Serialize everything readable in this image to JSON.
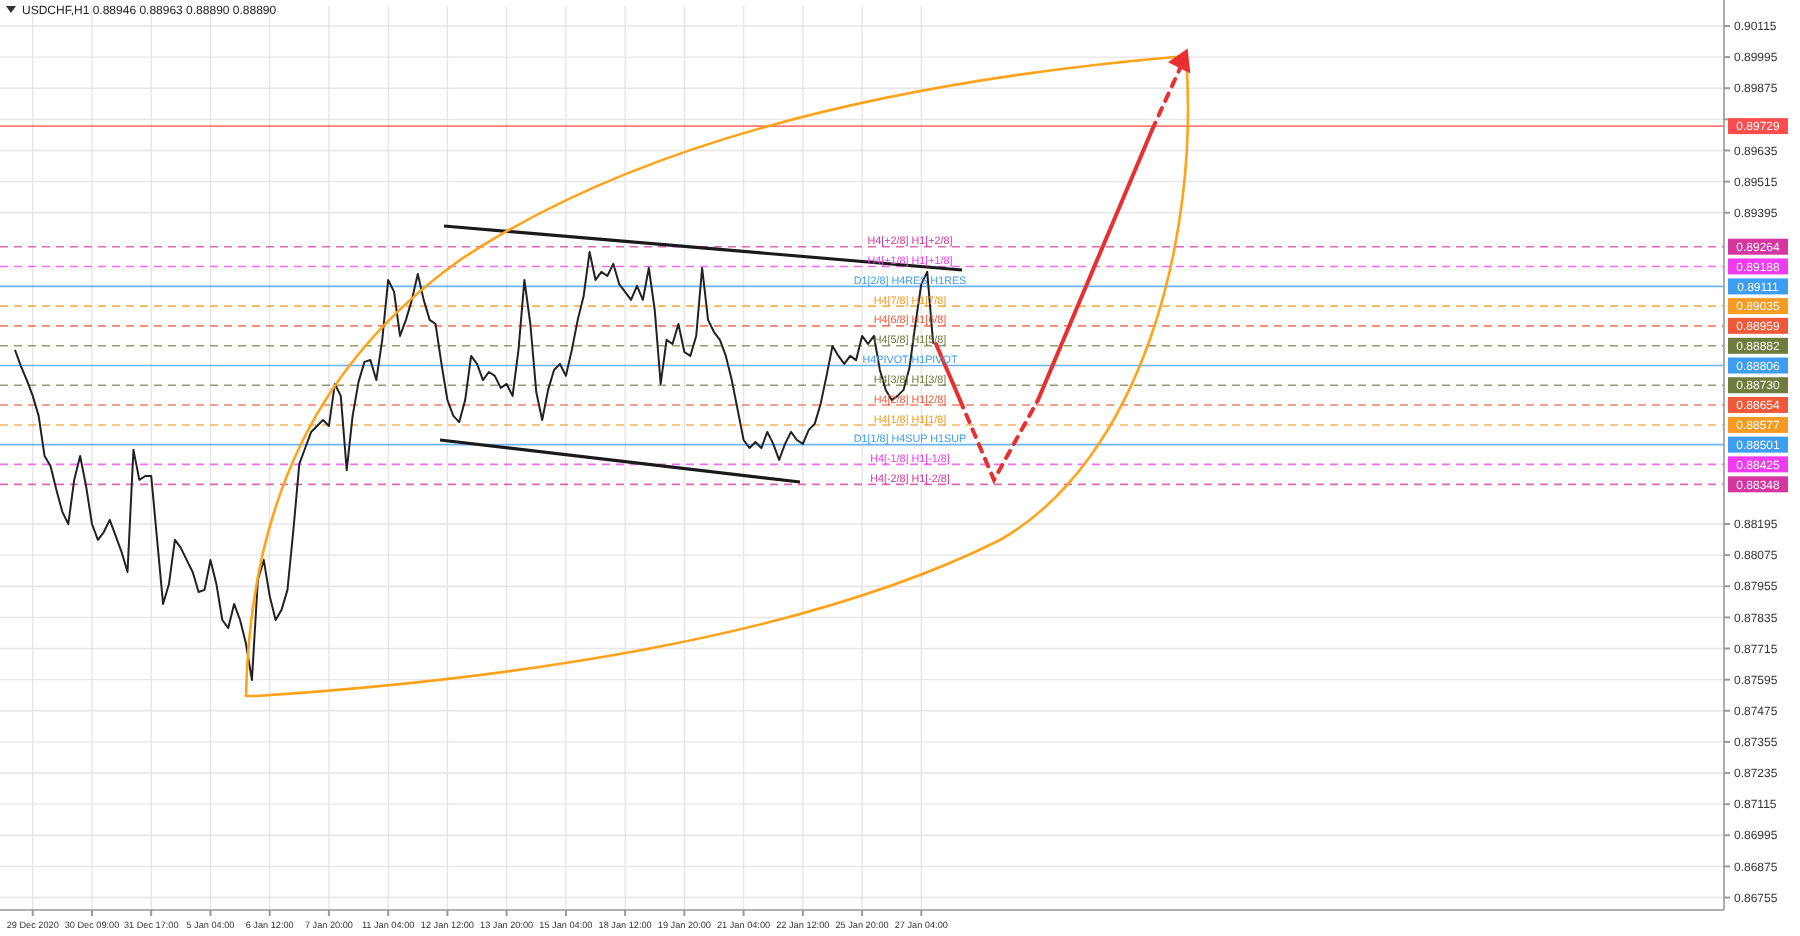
{
  "chart_data": {
    "type": "line",
    "title": "USDCHF,H1  0.88946 0.88963 0.88890 0.88890",
    "categories": [
      null,
      null,
      null,
      "29 Dec 2020",
      null,
      null,
      null,
      null,
      null,
      null,
      null,
      null,
      null,
      "30 Dec 09:00",
      null,
      null,
      null,
      null,
      null,
      null,
      null,
      null,
      null,
      "31 Dec 17:00",
      null,
      null,
      null,
      null,
      null,
      null,
      null,
      null,
      null,
      "5 Jan 04:00",
      null,
      null,
      null,
      null,
      null,
      null,
      null,
      null,
      null,
      "6 Jan 12:00",
      null,
      null,
      null,
      null,
      null,
      null,
      null,
      null,
      null,
      "7 Jan 20:00",
      null,
      null,
      null,
      null,
      null,
      null,
      null,
      null,
      null,
      "11 Jan 04:00",
      null,
      null,
      null,
      null,
      null,
      null,
      null,
      null,
      null,
      "12 Jan 12:00",
      null,
      null,
      null,
      null,
      null,
      null,
      null,
      null,
      null,
      "13 Jan 20:00",
      null,
      null,
      null,
      null,
      null,
      null,
      null,
      null,
      null,
      "15 Jan 04:00",
      null,
      null,
      null,
      null,
      null,
      null,
      null,
      null,
      null,
      "18 Jan 12:00",
      null,
      null,
      null,
      null,
      null,
      null,
      null,
      null,
      null,
      "19 Jan 20:00",
      null,
      null,
      null,
      null,
      null,
      null,
      null,
      null,
      null,
      "21 Jan 04:00",
      null,
      null,
      null,
      null,
      null,
      null,
      null,
      null,
      null,
      "22 Jan 12:00",
      null,
      null,
      null,
      null,
      null,
      null,
      null,
      null,
      null,
      "25 Jan 20:00",
      null,
      null,
      null,
      null,
      null,
      null,
      null,
      null,
      null,
      "27 Jan 04:00",
      null,
      null,
      null,
      null,
      null,
      null,
      null,
      null,
      null,
      null,
      null,
      null,
      null,
      null,
      null,
      null,
      null,
      null,
      null,
      null,
      null,
      null,
      null,
      null,
      null,
      null,
      null,
      null,
      null,
      null,
      null,
      null,
      null,
      null,
      null,
      null,
      null,
      null,
      null,
      null,
      null,
      null,
      null,
      null,
      null,
      null,
      null,
      null,
      null,
      null,
      null,
      null,
      null,
      null,
      null,
      null,
      null,
      null,
      null,
      null,
      null,
      null,
      null,
      null,
      null,
      null,
      null,
      null,
      null,
      null,
      null,
      null,
      null,
      null,
      null,
      null,
      null,
      null,
      null,
      null,
      null,
      null,
      null,
      null,
      null,
      null,
      null,
      null,
      null,
      null,
      null,
      null,
      null,
      null,
      null,
      null,
      null,
      null,
      null,
      null,
      null,
      null,
      null,
      null,
      null,
      null,
      null,
      null,
      null,
      null,
      null,
      null,
      null,
      null,
      null,
      null,
      null,
      null,
      null,
      null,
      null,
      null,
      null,
      null,
      null,
      null,
      null,
      null,
      null,
      null,
      null,
      null,
      null,
      null,
      null
    ],
    "series": [
      {
        "color": "#222222",
        "values": [
          0.88866,
          0.88804,
          0.8875,
          0.88689,
          0.88612,
          0.88457,
          0.88419,
          0.88326,
          0.88242,
          0.88195,
          0.88365,
          0.88457,
          0.88342,
          0.88195,
          0.88134,
          0.88164,
          0.88211,
          0.88149,
          0.88087,
          0.8801,
          0.88481,
          0.88365,
          0.8838,
          0.8838,
          0.88134,
          0.87887,
          0.87964,
          0.88134,
          0.88103,
          0.88056,
          0.8801,
          0.87933,
          0.87941,
          0.88056,
          0.87964,
          0.87825,
          0.87794,
          0.87887,
          0.87825,
          0.87733,
          0.87594,
          0.87979,
          0.88056,
          0.87918,
          0.87825,
          0.87864,
          0.87941,
          0.88172,
          0.88427,
          0.88488,
          0.8855,
          0.88573,
          0.88596,
          0.88573,
          0.88735,
          0.88689,
          0.88403,
          0.88612,
          0.88743,
          0.8882,
          0.88827,
          0.8875,
          0.88905,
          0.89136,
          0.8909,
          0.8892,
          0.88982,
          0.89059,
          0.89159,
          0.89059,
          0.88982,
          0.88966,
          0.88812,
          0.88673,
          0.88612,
          0.88588,
          0.88673,
          0.88843,
          0.88812,
          0.8875,
          0.88781,
          0.88766,
          0.8872,
          0.88735,
          0.88689,
          0.88866,
          0.89136,
          0.88966,
          0.88704,
          0.88596,
          0.88712,
          0.88789,
          0.88812,
          0.88766,
          0.88866,
          0.88982,
          0.89074,
          0.89244,
          0.89136,
          0.89167,
          0.89151,
          0.89198,
          0.8912,
          0.8909,
          0.89059,
          0.89113,
          0.89059,
          0.89182,
          0.8902,
          0.88735,
          0.88905,
          0.88889,
          0.88966,
          0.88858,
          0.88843,
          0.8892,
          0.89182,
          0.88982,
          0.88935,
          0.88905,
          0.88843,
          0.8875,
          0.88635,
          0.88519,
          0.88488,
          0.88511,
          0.88488,
          0.8855,
          0.88504,
          0.88442,
          0.88504,
          0.8855,
          0.88519,
          0.88504,
          0.88558,
          0.88581,
          0.88658,
          0.88766,
          0.88881,
          0.88843,
          0.88812,
          0.88843,
          0.88827,
          0.8892,
          0.88889,
          0.8892,
          0.88789,
          0.88712,
          0.88673,
          0.88689,
          0.88712,
          0.88797,
          0.88966,
          0.8912,
          0.89167,
          0.8889,
          null,
          null,
          null,
          null,
          null,
          null,
          null,
          null,
          null,
          null,
          null,
          null,
          null,
          null,
          null,
          null,
          null,
          null,
          null,
          null,
          null,
          null,
          null,
          null,
          null,
          null,
          null,
          null,
          null,
          null,
          null,
          null,
          null,
          null,
          null,
          null,
          null,
          null,
          null,
          null,
          null,
          null,
          null,
          null,
          null,
          null,
          null,
          null,
          null,
          null,
          null,
          null,
          null,
          null,
          null,
          null,
          null,
          null,
          null,
          null,
          null,
          null,
          null,
          null,
          null,
          null,
          null,
          null,
          null,
          null,
          null,
          null,
          null,
          null,
          null,
          null,
          null,
          null,
          null,
          null,
          null,
          null,
          null,
          null,
          null,
          null,
          null,
          null,
          null,
          null,
          null,
          null,
          null,
          null,
          null,
          null,
          null,
          null,
          null,
          null,
          null,
          null,
          null,
          null,
          null,
          null,
          null,
          null,
          null,
          null,
          null,
          null,
          null,
          null,
          null,
          null,
          null,
          null,
          null,
          null,
          null,
          null,
          null,
          null,
          null,
          null,
          null,
          null,
          null,
          null,
          null,
          null,
          null
        ]
      }
    ],
    "ylim": [
      0.86707,
      0.90192
    ],
    "yticks": [
      0.90115,
      0.89995,
      0.89875,
      {
        "value": 0.89755,
        "label": null
      },
      0.89635,
      0.89515,
      0.89395,
      0.88195,
      0.88075,
      0.87955,
      0.87835,
      0.87715,
      0.87595,
      0.87475,
      0.87355,
      0.87235,
      0.87115,
      0.86995,
      0.86875,
      0.86755
    ],
    "grid": true,
    "annotations": [
      "0.89729",
      "0.89264",
      "0.89188",
      "0.89111",
      "0.89035",
      "0.88959",
      "0.88882",
      "0.88806",
      "0.88730",
      "0.88654",
      "0.88577",
      "0.88501",
      "0.88425",
      "0.88348"
    ],
    "ref_lines": [
      {
        "axis": "y",
        "value": 0.89729,
        "color": "#ff4d4d",
        "line_style": "solid"
      },
      {
        "axis": "y",
        "value": 0.89264,
        "label": "H4[+2/8] H1[+2/8]",
        "color": "#d4359f",
        "line_style": "dashed"
      },
      {
        "axis": "y",
        "value": 0.89188,
        "label": "H4[+1/8] H1[+1/8]",
        "color": "#f03cf0",
        "line_style": "dashed"
      },
      {
        "axis": "y",
        "value": 0.89111,
        "label": "D1[2/8] H4RES H1RES",
        "color": "#3d9df0",
        "line_style": "solid"
      },
      {
        "axis": "y",
        "value": 0.89035,
        "label": "H4[7/8] H1[7/8]",
        "color": "#f59a23",
        "line_style": "dashed"
      },
      {
        "axis": "y",
        "value": 0.88959,
        "label": "H4[6/8] H1[6/8]",
        "color": "#f0583a",
        "line_style": "dashed"
      },
      {
        "axis": "y",
        "value": 0.88882,
        "label": "H4[5/8] H1[5/8]",
        "color": "#6e7d3c",
        "line_style": "dashed"
      },
      {
        "axis": "y",
        "value": 0.88806,
        "label": "H4PIVOT H1PIVOT",
        "color": "#3d9df0",
        "line_style": "solid"
      },
      {
        "axis": "y",
        "value": 0.8873,
        "label": "H4[3/8] H1[3/8]",
        "color": "#6e7d3c",
        "line_style": "dashed"
      },
      {
        "axis": "y",
        "value": 0.88654,
        "label": "H4[2/8] H1[2/8]",
        "color": "#f0583a",
        "line_style": "dashed"
      },
      {
        "axis": "y",
        "value": 0.88577,
        "label": "H4[1/8] H1[1/8]",
        "color": "#f59a23",
        "line_style": "dashed"
      },
      {
        "axis": "y",
        "value": 0.88501,
        "label": "D1[1/8] H4SUP H1SUP",
        "color": "#3d9df0",
        "line_style": "solid"
      },
      {
        "axis": "y",
        "value": 0.88425,
        "label": "H4[-1/8] H1[-1/8]",
        "color": "#f03cf0",
        "line_style": "dashed"
      },
      {
        "axis": "y",
        "value": 0.88348,
        "label": "H4[-2/8] H1[-2/8]",
        "color": "#d4359f",
        "line_style": "dashed"
      }
    ]
  }
}
